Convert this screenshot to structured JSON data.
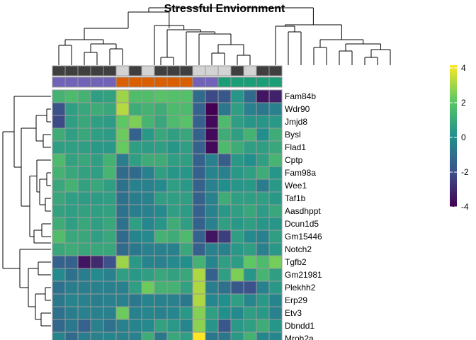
{
  "chart_data": {
    "type": "heatmap",
    "title": "Stressful Enviornment",
    "rows": [
      "Fam84b",
      "Wdr90",
      "Jmjd8",
      "Bysl",
      "Flad1",
      "Cptp",
      "Fam98a",
      "Wee1",
      "Taf1b",
      "Aasdhppt",
      "Dcun1d5",
      "Gm15446",
      "Notch2",
      "Tgfb2",
      "Gm21981",
      "Plekhh2",
      "Erp29",
      "Etv3",
      "Dbndd1",
      "Mroh2a"
    ],
    "column_count": 18,
    "column_annotation_row1": [
      "#3f3f3f",
      "#3f3f3f",
      "#3f3f3f",
      "#3f3f3f",
      "#3f3f3f",
      "#d3d3d3",
      "#3f3f3f",
      "#d3d3d3",
      "#3f3f3f",
      "#3f3f3f",
      "#3f3f3f",
      "#d3d3d3",
      "#d3d3d3",
      "#d3d3d3",
      "#3f3f3f",
      "#d3d3d3",
      "#3f3f3f",
      "#3f3f3f"
    ],
    "column_annotation_row2": [
      "#7163b8",
      "#7163b8",
      "#7163b8",
      "#7163b8",
      "#7163b8",
      "#d95f02",
      "#d95f02",
      "#d95f02",
      "#d95f02",
      "#d95f02",
      "#d95f02",
      "#7163b8",
      "#7163b8",
      "#1b9e77",
      "#1b9e77",
      "#1b9e77",
      "#1b9e77",
      "#1b9e77"
    ],
    "values": [
      [
        1.2,
        1.5,
        1.2,
        0.5,
        0.6,
        2.8,
        1.6,
        1.6,
        1.8,
        1.7,
        1.7,
        -1.2,
        -2.2,
        -1.8,
        0.2,
        -1.2,
        -3.5,
        -3.2
      ],
      [
        -2.0,
        0.5,
        0.8,
        1.0,
        0.8,
        3.1,
        1.0,
        1.2,
        1.0,
        1.5,
        1.5,
        -1.5,
        -4.0,
        -0.8,
        0.5,
        -0.5,
        -0.8,
        -0.5
      ],
      [
        -2.2,
        0.5,
        0.8,
        0.5,
        0.4,
        2.0,
        2.4,
        1.3,
        0.8,
        1.5,
        1.8,
        -1.5,
        -3.8,
        1.5,
        0.5,
        0.2,
        0.2,
        0.3
      ],
      [
        1.0,
        0.5,
        0.8,
        0.5,
        0.4,
        2.2,
        -1.5,
        0.3,
        0.8,
        0.5,
        0.8,
        -1.5,
        -3.8,
        1.0,
        0.5,
        1.2,
        0.0,
        1.0
      ],
      [
        0.5,
        0.5,
        0.5,
        0.3,
        0.3,
        2.1,
        0.5,
        0.4,
        0.5,
        0.2,
        0.5,
        -1.5,
        -3.8,
        1.5,
        1.0,
        0.5,
        0.5,
        0.8
      ],
      [
        1.5,
        0.6,
        0.8,
        0.5,
        1.2,
        -0.6,
        0.5,
        1.0,
        1.0,
        0.5,
        0.5,
        -1.5,
        -0.5,
        -1.6,
        0.3,
        0.0,
        0.5,
        1.3
      ],
      [
        1.2,
        0.8,
        0.6,
        0.5,
        1.3,
        -1.2,
        -1.2,
        -0.5,
        0.5,
        0.2,
        0.2,
        -1.5,
        -0.4,
        -0.5,
        0.3,
        0.5,
        1.0,
        0.2
      ],
      [
        0.8,
        1.2,
        0.6,
        0.8,
        0.5,
        -1.0,
        -0.5,
        -0.5,
        -0.2,
        0.5,
        0.3,
        -1.5,
        -0.5,
        0.0,
        0.2,
        0.3,
        -0.6,
        0.3
      ],
      [
        0.8,
        0.5,
        0.4,
        0.4,
        0.5,
        -1.0,
        -0.6,
        -0.5,
        0.5,
        0.5,
        0.5,
        -1.5,
        -0.5,
        1.0,
        0.5,
        0.5,
        0.5,
        0.3
      ],
      [
        0.6,
        0.5,
        0.6,
        0.5,
        0.6,
        -1.0,
        -0.6,
        -0.5,
        -0.2,
        0.5,
        0.4,
        -1.5,
        -0.5,
        0.3,
        0.5,
        0.8,
        0.4,
        0.8
      ],
      [
        1.0,
        0.5,
        0.8,
        0.5,
        0.8,
        -1.0,
        0.5,
        -0.3,
        0.2,
        1.0,
        0.5,
        -1.5,
        -0.5,
        0.5,
        0.3,
        0.5,
        0.2,
        0.2
      ],
      [
        1.6,
        0.8,
        0.8,
        0.5,
        0.8,
        -1.2,
        -0.4,
        -0.2,
        1.2,
        1.0,
        1.5,
        -1.5,
        -3.5,
        -2.5,
        0.5,
        -0.2,
        -0.5,
        0.5
      ],
      [
        0.8,
        1.0,
        0.8,
        0.8,
        0.8,
        -1.2,
        -0.8,
        -0.5,
        -0.5,
        -0.5,
        0.8,
        -1.5,
        -0.5,
        -0.5,
        0.3,
        0.5,
        -0.5,
        0.3
      ],
      [
        -1.5,
        -1.5,
        -3.5,
        -3.0,
        -2.0,
        2.8,
        0.3,
        -0.4,
        -0.5,
        -0.2,
        0.0,
        1.2,
        -0.4,
        0.5,
        0.4,
        2.0,
        1.5,
        2.3
      ],
      [
        -0.2,
        -1.0,
        -0.6,
        -0.2,
        -0.5,
        0.5,
        0.3,
        0.5,
        0.8,
        0.6,
        0.8,
        3.0,
        -1.5,
        0.5,
        2.4,
        0.2,
        1.3,
        0.5
      ],
      [
        -1.0,
        -0.6,
        -0.6,
        -0.5,
        -0.5,
        -0.5,
        0.5,
        2.2,
        1.2,
        1.2,
        0.6,
        3.0,
        -0.6,
        -1.0,
        -1.8,
        -2.0,
        -0.5,
        0.3
      ],
      [
        -0.8,
        -0.4,
        -0.5,
        -0.6,
        -0.5,
        -0.5,
        -0.8,
        -0.4,
        -0.5,
        -0.5,
        -0.8,
        3.0,
        -0.3,
        0.0,
        0.5,
        -0.3,
        0.3,
        -0.4
      ],
      [
        -1.0,
        -0.6,
        -0.5,
        -0.5,
        -0.5,
        2.2,
        -0.5,
        -0.3,
        -0.5,
        -0.3,
        0.3,
        2.5,
        0.5,
        0.0,
        -0.2,
        0.5,
        0.3,
        -0.5
      ],
      [
        -1.3,
        -0.8,
        -1.5,
        -0.5,
        -1.0,
        -0.5,
        -0.4,
        -0.2,
        0.6,
        0.3,
        -0.3,
        2.6,
        0.2,
        -1.8,
        0.3,
        0.5,
        1.0,
        0.2
      ],
      [
        -0.4,
        -1.2,
        -0.6,
        -0.5,
        -0.3,
        -0.5,
        -0.5,
        1.0,
        -0.8,
        0.8,
        0.5,
        4.0,
        -0.8,
        -0.8,
        0.3,
        1.2,
        -0.3,
        -0.3
      ]
    ],
    "color_scale": {
      "min": -4,
      "max": 4,
      "ticks": [
        "4",
        "2",
        "0",
        "-2",
        "-4"
      ],
      "stops": [
        "#440154",
        "#3b528b",
        "#21908d",
        "#5dc863",
        "#fde725"
      ]
    },
    "cell_border_color": "#9a9a9a"
  }
}
